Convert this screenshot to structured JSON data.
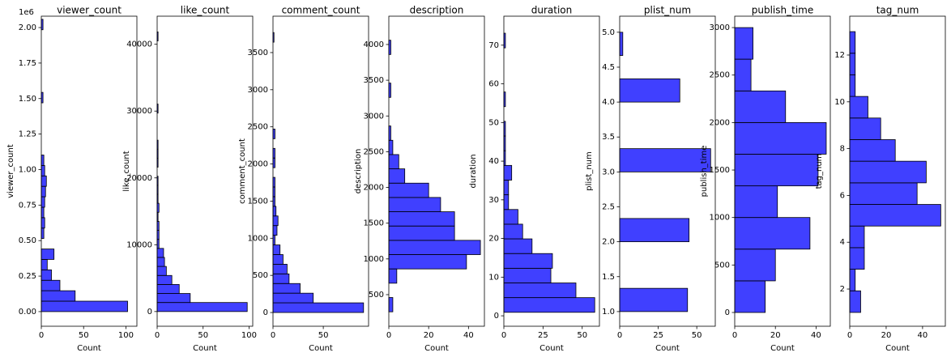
{
  "chart_data": [
    {
      "type": "histogram",
      "orientation": "horizontal",
      "title": "viewer_count",
      "xlabel": "Count",
      "ylabel": "viewer_count",
      "color": "#0000ff",
      "y_offset_label": "1e6",
      "bins": [
        0,
        73500,
        147000,
        220500,
        294000,
        367500,
        441000,
        514500,
        588000,
        661500,
        735000,
        808500,
        882000,
        955500,
        1029000,
        1102500,
        1176000,
        1249500,
        1323000,
        1396500,
        1470000,
        1543500,
        1617000,
        1690500,
        1764000,
        1837500,
        1911000,
        1984500,
        2058000
      ],
      "values": [
        102,
        40,
        22,
        12,
        7,
        15,
        0,
        3,
        4,
        3,
        4,
        5,
        6,
        4,
        3,
        0,
        0,
        0,
        0,
        0,
        2,
        0,
        0,
        0,
        0,
        0,
        0,
        2
      ],
      "xlim": [
        0,
        113
      ],
      "xticks": [
        0,
        50,
        100
      ],
      "ylim": [
        -103000,
        2080000
      ],
      "yticks": [
        {
          "value": 0,
          "label": "0.00"
        },
        {
          "value": 250000,
          "label": "0.25"
        },
        {
          "value": 500000,
          "label": "0.50"
        },
        {
          "value": 750000,
          "label": "0.75"
        },
        {
          "value": 1000000,
          "label": "1.00"
        },
        {
          "value": 1250000,
          "label": "1.25"
        },
        {
          "value": 1500000,
          "label": "1.50"
        },
        {
          "value": 1750000,
          "label": "1.75"
        },
        {
          "value": 2000000,
          "label": "2.00"
        }
      ]
    },
    {
      "type": "histogram",
      "orientation": "horizontal",
      "title": "like_count",
      "xlabel": "Count",
      "ylabel": "like_count",
      "color": "#0000ff",
      "bins": [
        0,
        1350,
        2700,
        4050,
        5400,
        6750,
        8100,
        9450,
        10800,
        12150,
        13500,
        14850,
        16200,
        17550,
        18900,
        20250,
        21600,
        22950,
        24300,
        25650,
        27000,
        28350,
        29700,
        31050,
        32400,
        33750,
        35100,
        36450,
        37800,
        39150,
        40500,
        41850,
        43200
      ],
      "values": [
        98,
        36,
        24,
        16,
        10,
        8,
        7,
        2,
        2,
        2,
        1,
        2,
        1,
        1,
        1,
        0,
        1,
        1,
        1,
        0,
        0,
        0,
        1,
        0,
        0,
        0,
        0,
        0,
        0,
        0,
        1,
        0
      ],
      "xlim": [
        0,
        104
      ],
      "xticks": [
        0,
        50,
        100
      ],
      "ylim": [
        -2200,
        44200
      ],
      "yticks": [
        0,
        10000,
        20000,
        30000,
        40000
      ]
    },
    {
      "type": "histogram",
      "orientation": "horizontal",
      "title": "comment_count",
      "xlabel": "Count",
      "ylabel": "comment_count",
      "color": "#0000ff",
      "bins": [
        0,
        130,
        260,
        390,
        520,
        650,
        780,
        910,
        1040,
        1170,
        1300,
        1430,
        1560,
        1690,
        1820,
        1950,
        2080,
        2210,
        2340,
        2470,
        2600,
        2730,
        2860,
        2990,
        3120,
        3250,
        3380,
        3510,
        3640,
        3770,
        3900
      ],
      "values": [
        90,
        40,
        27,
        16,
        14,
        10,
        7,
        2,
        4,
        5,
        3,
        2,
        2,
        2,
        0,
        2,
        2,
        0,
        2,
        0,
        0,
        0,
        0,
        0,
        0,
        0,
        0,
        0,
        1,
        0
      ],
      "xlim": [
        0,
        95
      ],
      "xticks": [
        0,
        50
      ],
      "ylim": [
        -185,
        3990
      ],
      "yticks": [
        0,
        500,
        1000,
        1500,
        2000,
        2500,
        3000,
        3500
      ]
    },
    {
      "type": "histogram",
      "orientation": "horizontal",
      "title": "description",
      "xlabel": "Count",
      "ylabel": "description",
      "color": "#0000ff",
      "bins": [
        260,
        460,
        660,
        860,
        1060,
        1260,
        1460,
        1660,
        1860,
        2060,
        2260,
        2460,
        2660,
        2860,
        3060,
        3260,
        3460,
        3660,
        3860,
        4060
      ],
      "values": [
        2,
        0,
        4,
        39,
        46,
        33,
        33,
        26,
        20,
        8,
        5,
        2,
        1,
        0,
        0,
        1,
        0,
        0,
        1
      ],
      "xlim": [
        0,
        48
      ],
      "xticks": [
        0,
        20,
        40
      ],
      "ylim": [
        58,
        4396
      ],
      "yticks": [
        500,
        1000,
        1500,
        2000,
        2500,
        3000,
        3500,
        4000
      ]
    },
    {
      "type": "histogram",
      "orientation": "horizontal",
      "title": "duration",
      "xlabel": "Count",
      "ylabel": "duration",
      "color": "#0000ff",
      "bins": [
        0.9,
        4.7,
        8.5,
        12.3,
        16.1,
        19.9,
        23.7,
        27.5,
        31.3,
        35.1,
        38.9,
        42.7,
        46.5,
        50.3,
        54.1,
        57.9,
        61.7,
        65.5,
        69.3,
        73.1
      ],
      "values": [
        58,
        46,
        30,
        31,
        18,
        12,
        9,
        3,
        3,
        5,
        1,
        1,
        1,
        0,
        1,
        0,
        0,
        0,
        1
      ],
      "xlim": [
        0,
        61
      ],
      "xticks": [
        0,
        25,
        50
      ],
      "ylim": [
        -2.7,
        77.5
      ],
      "yticks": [
        0,
        10,
        20,
        30,
        40,
        50,
        60,
        70
      ]
    },
    {
      "type": "histogram",
      "orientation": "horizontal",
      "title": "plist_num",
      "xlabel": "Count",
      "ylabel": "plist_num",
      "color": "#0000ff",
      "bins": [
        1,
        1.333,
        1.667,
        2,
        2.333,
        2.667,
        3,
        3.333,
        3.667,
        4,
        4.333,
        4.667,
        5
      ],
      "values": [
        44,
        0,
        0,
        45,
        0,
        0,
        59,
        0,
        0,
        39,
        0,
        2
      ],
      "xlim": [
        0,
        62
      ],
      "xticks": [
        0,
        25,
        50
      ],
      "ylim": [
        0.79,
        5.23
      ],
      "yticks": [
        {
          "value": 1,
          "label": "1.0"
        },
        {
          "value": 1.5,
          "label": "1.5"
        },
        {
          "value": 2,
          "label": "2.0"
        },
        {
          "value": 2.5,
          "label": "2.5"
        },
        {
          "value": 3,
          "label": "3.0"
        },
        {
          "value": 3.5,
          "label": "3.5"
        },
        {
          "value": 4,
          "label": "4.0"
        },
        {
          "value": 4.5,
          "label": "4.5"
        },
        {
          "value": 5,
          "label": "5.0"
        }
      ]
    },
    {
      "type": "histogram",
      "orientation": "horizontal",
      "title": "publish_time",
      "xlabel": "Count",
      "ylabel": "publish_time",
      "color": "#0000ff",
      "bins": [
        0,
        333,
        667,
        1000,
        1333,
        1667,
        2000,
        2333,
        2667,
        3000
      ],
      "values": [
        15,
        20,
        37,
        21,
        41,
        45,
        25,
        8,
        9
      ],
      "xlim": [
        0,
        47
      ],
      "xticks": [
        0,
        20,
        40
      ],
      "ylim": [
        -145,
        3120
      ],
      "yticks": [
        0,
        500,
        1000,
        1500,
        2000,
        2500,
        3000
      ]
    },
    {
      "type": "histogram",
      "orientation": "horizontal",
      "title": "tag_num",
      "xlabel": "Count",
      "ylabel": "tag_num",
      "color": "#0000ff",
      "bins": [
        1,
        1.923,
        2.846,
        3.769,
        4.692,
        5.615,
        6.538,
        7.462,
        8.385,
        9.308,
        10.231,
        11.154,
        12.077,
        13
      ],
      "values": [
        6,
        3,
        8,
        8,
        50,
        37,
        42,
        25,
        17,
        10,
        3,
        3,
        3
      ],
      "xlim": [
        0,
        52.5
      ],
      "xticks": [
        0,
        20,
        40
      ],
      "ylim": [
        0.41,
        13.66
      ],
      "yticks": [
        2,
        4,
        6,
        8,
        10,
        12
      ]
    }
  ]
}
